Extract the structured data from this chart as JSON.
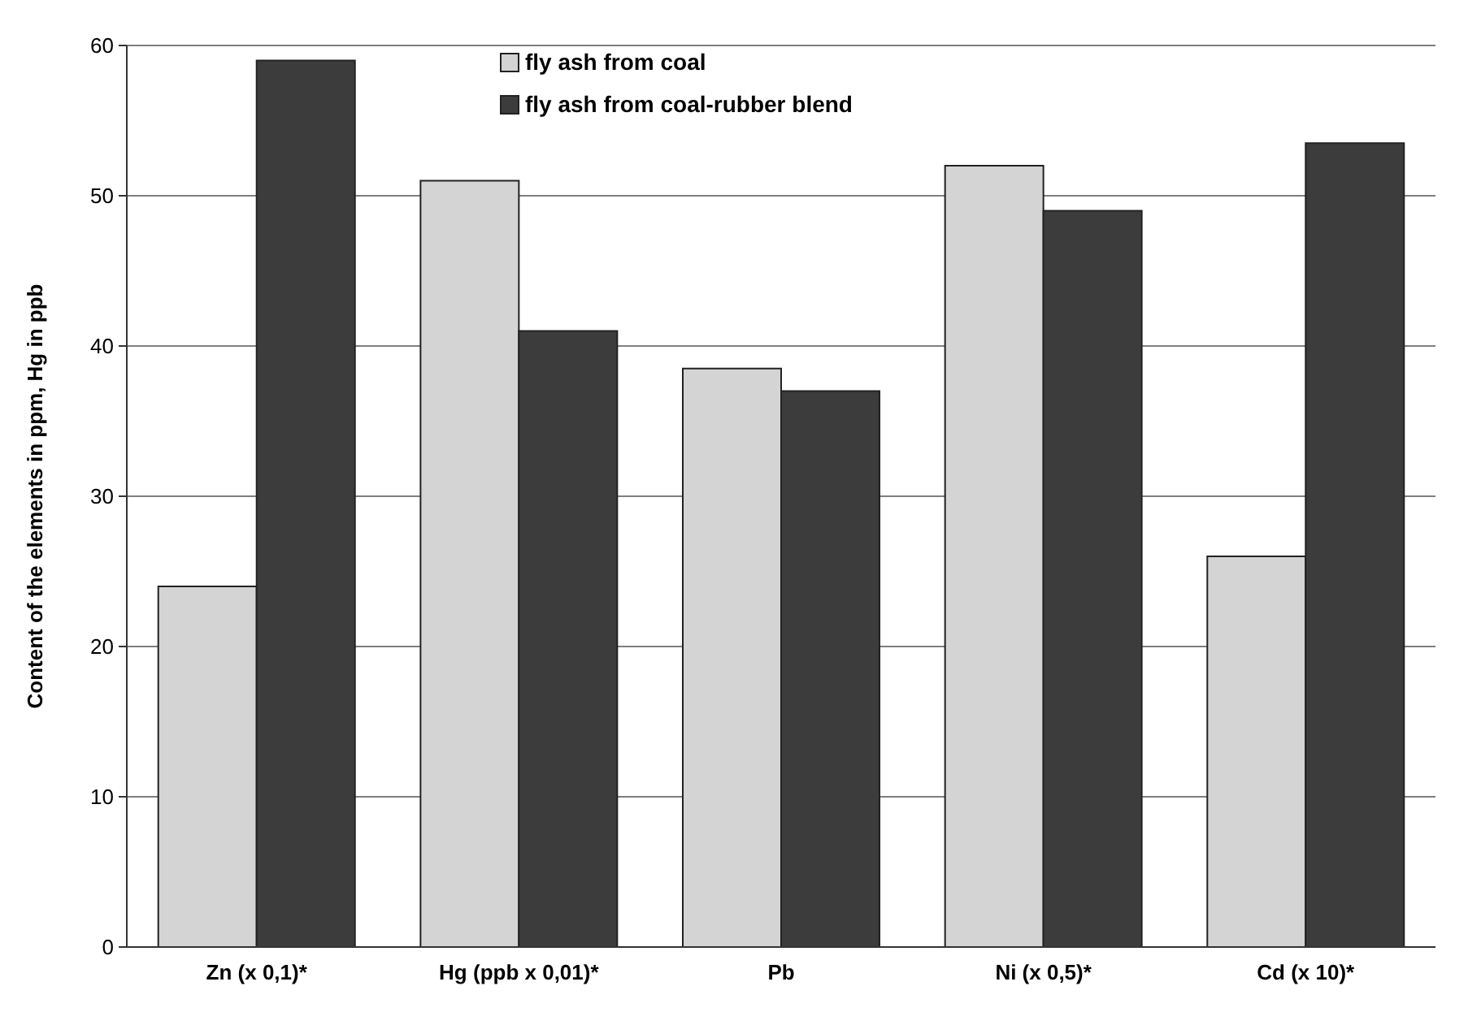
{
  "chart_data": {
    "type": "bar",
    "ylabel": "Content of the elements  in  ppm, Hg in  ppb",
    "categories": [
      "Zn (x 0,1)*",
      "Hg (ppb x 0,01)*",
      "Pb",
      "Ni (x 0,5)*",
      "Cd (x 10)*"
    ],
    "series": [
      {
        "name": "fly ash from coal",
        "color": "#d4d4d4",
        "values": [
          24,
          51,
          38.5,
          52,
          26
        ]
      },
      {
        "name": "fly ash from coal-rubber blend",
        "color": "#3c3c3c",
        "values": [
          59,
          41,
          37,
          49,
          53.5
        ]
      }
    ],
    "ylim": [
      0,
      60
    ],
    "yticks": [
      0,
      10,
      20,
      30,
      40,
      50,
      60
    ],
    "grid": "y",
    "legend": "top"
  }
}
